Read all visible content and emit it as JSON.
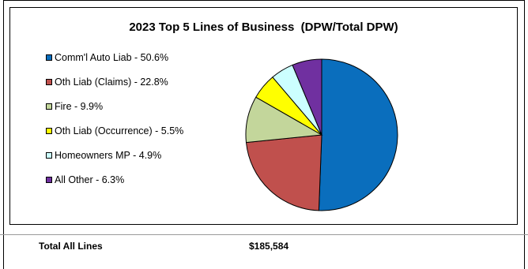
{
  "chart_data": {
    "type": "pie",
    "title": "2023 Top 5 Lines of Business  (DPW/Total DPW)",
    "legend_position": "left",
    "slices": [
      {
        "label": "Comm'l Auto Liab - 50.6%",
        "value": 50.6,
        "color": "#0a6ebd"
      },
      {
        "label": "Oth Liab (Claims) - 22.8%",
        "value": 22.8,
        "color": "#c0504d"
      },
      {
        "label": "Fire - 9.9%",
        "value": 9.9,
        "color": "#c3d69b"
      },
      {
        "label": "Oth Liab (Occurrence) - 5.5%",
        "value": 5.5,
        "color": "#ffff00"
      },
      {
        "label": "Homeowners MP - 4.9%",
        "value": 4.9,
        "color": "#ccffff"
      },
      {
        "label": "All Other - 6.3%",
        "value": 6.3,
        "color": "#7030a0"
      }
    ]
  },
  "footer": {
    "label": "Total All Lines",
    "value": "$185,584"
  }
}
